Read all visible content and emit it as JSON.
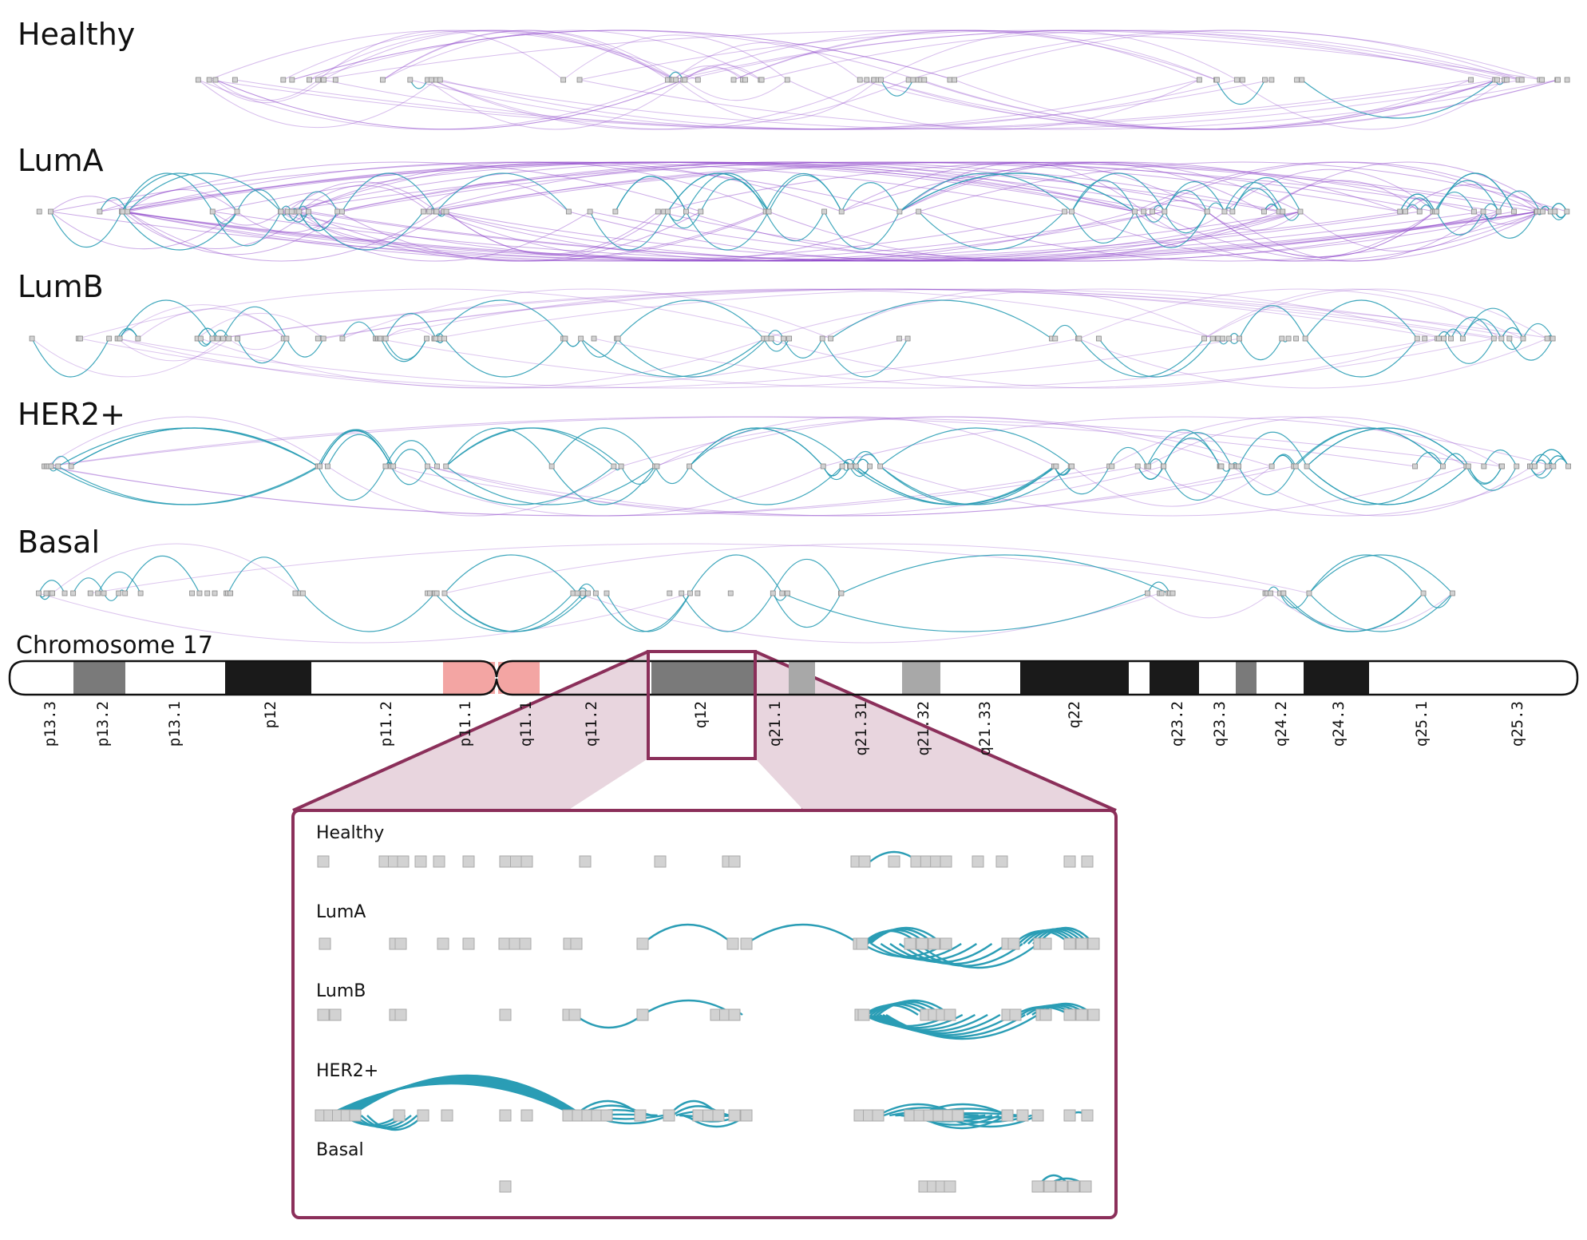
{
  "tracks": [
    {
      "label": "Healthy"
    },
    {
      "label": "LumA"
    },
    {
      "label": "LumB"
    },
    {
      "label": "HER2+"
    },
    {
      "label": "Basal"
    }
  ],
  "chromosome": {
    "label": "Chromosome 17",
    "bands": [
      {
        "name": "p13.3",
        "stain": "gneg"
      },
      {
        "name": "p13.2",
        "stain": "gpos50"
      },
      {
        "name": "p13.1",
        "stain": "gneg"
      },
      {
        "name": "p12",
        "stain": "gpos100"
      },
      {
        "name": "p11.2",
        "stain": "gneg"
      },
      {
        "name": "p11.1",
        "stain": "acen"
      },
      {
        "name": "q11.1",
        "stain": "acen"
      },
      {
        "name": "q11.2",
        "stain": "gneg"
      },
      {
        "name": "q12",
        "stain": "gpos50"
      },
      {
        "name": "q21.1",
        "stain": "gpos25"
      },
      {
        "name": "q21.31",
        "stain": "gneg"
      },
      {
        "name": "q21.32",
        "stain": "gpos25"
      },
      {
        "name": "q21.33",
        "stain": "gneg"
      },
      {
        "name": "q22",
        "stain": "gpos100"
      },
      {
        "name": "q23.2",
        "stain": "gpos100"
      },
      {
        "name": "q23.3",
        "stain": "gneg"
      },
      {
        "name": "q24.2",
        "stain": "gpos50"
      },
      {
        "name": "q24.3",
        "stain": "gpos100"
      },
      {
        "name": "q25.1",
        "stain": "gneg"
      },
      {
        "name": "q25.3",
        "stain": "gneg"
      }
    ],
    "highlighted_band": "q12"
  },
  "inset": {
    "tracks": [
      {
        "label": "Healthy"
      },
      {
        "label": "LumA"
      },
      {
        "label": "LumB"
      },
      {
        "label": "HER2+"
      },
      {
        "label": "Basal"
      }
    ]
  },
  "colors": {
    "intra_arc": "#2a9db5",
    "inter_arc": "#8a3fc8",
    "gene_box": "#d2d2d2",
    "gene_box_stroke": "#888888",
    "highlight_frame": "#8b2f5a",
    "highlight_fill": "#e8d5de",
    "acen": "#f3a5a3",
    "gpos100": "#1a1a1a",
    "gpos75": "#3a3a3a",
    "gpos50": "#7a7a7a",
    "gpos25": "#a8a8a8",
    "gneg": "#ffffff"
  }
}
